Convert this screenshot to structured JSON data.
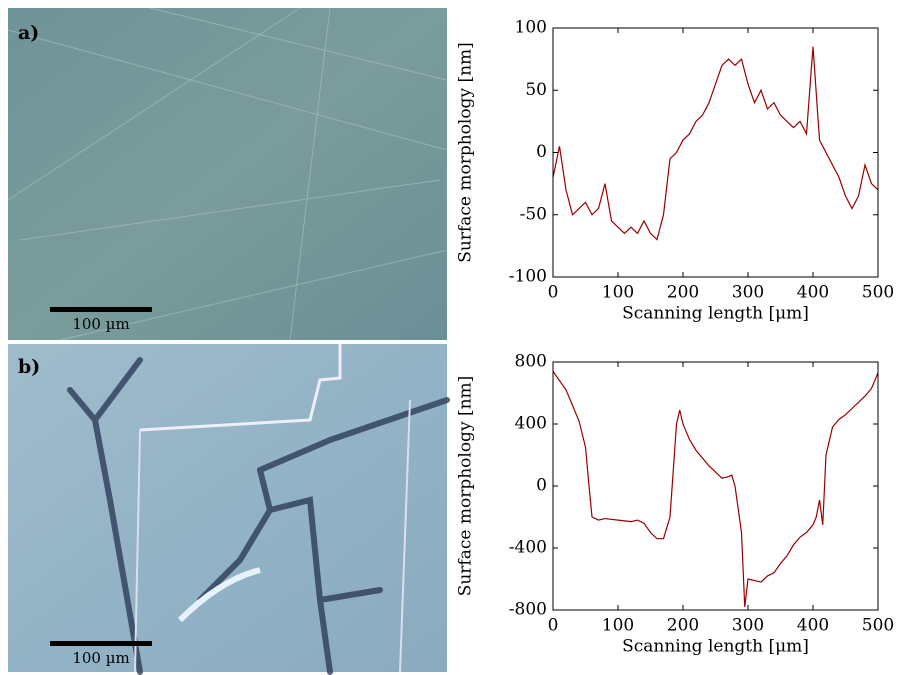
{
  "panels": [
    {
      "label": "a)",
      "scale_bar": "100 µm"
    },
    {
      "label": "b)",
      "scale_bar": "100 µm"
    }
  ],
  "chart_data": [
    {
      "type": "line",
      "color": "#990000",
      "xlabel": "Scanning length [μm]",
      "ylabel": "Surface morphology [nm]",
      "x": [
        0,
        10,
        20,
        30,
        40,
        50,
        60,
        70,
        80,
        90,
        100,
        110,
        120,
        130,
        140,
        150,
        160,
        170,
        180,
        190,
        200,
        210,
        220,
        230,
        240,
        250,
        260,
        270,
        280,
        290,
        300,
        310,
        320,
        330,
        340,
        350,
        360,
        370,
        380,
        390,
        400,
        410,
        420,
        430,
        440,
        450,
        460,
        470,
        480,
        490,
        500
      ],
      "values": [
        -20,
        5,
        -30,
        -50,
        -45,
        -40,
        -50,
        -45,
        -25,
        -55,
        -60,
        -65,
        -60,
        -65,
        -55,
        -65,
        -70,
        -50,
        -5,
        0,
        10,
        15,
        25,
        30,
        40,
        55,
        70,
        75,
        70,
        75,
        55,
        40,
        50,
        35,
        40,
        30,
        25,
        20,
        25,
        15,
        85,
        10,
        0,
        -10,
        -20,
        -35,
        -45,
        -35,
        -10,
        -25,
        -30
      ],
      "xlim": [
        0,
        500
      ],
      "xticks": [
        0,
        100,
        200,
        300,
        400,
        500
      ],
      "ylim": [
        -100,
        100
      ],
      "yticks": [
        -100,
        -50,
        0,
        50,
        100
      ]
    },
    {
      "type": "line",
      "color": "#990000",
      "xlabel": "Scanning length [μm]",
      "ylabel": "Surface morphology [nm]",
      "x": [
        0,
        10,
        20,
        30,
        40,
        50,
        55,
        60,
        70,
        80,
        100,
        120,
        130,
        140,
        150,
        160,
        170,
        180,
        190,
        195,
        200,
        210,
        220,
        230,
        240,
        250,
        260,
        270,
        275,
        280,
        290,
        295,
        300,
        310,
        320,
        330,
        340,
        350,
        360,
        370,
        380,
        390,
        400,
        405,
        410,
        415,
        420,
        430,
        440,
        450,
        460,
        470,
        480,
        490,
        500
      ],
      "values": [
        740,
        680,
        620,
        520,
        420,
        250,
        20,
        -200,
        -220,
        -210,
        -220,
        -230,
        -220,
        -240,
        -300,
        -340,
        -340,
        -200,
        400,
        490,
        400,
        300,
        230,
        180,
        130,
        90,
        50,
        60,
        70,
        0,
        -300,
        -780,
        -600,
        -610,
        -620,
        -580,
        -560,
        -500,
        -450,
        -380,
        -330,
        -300,
        -250,
        -200,
        -90,
        -250,
        200,
        380,
        430,
        460,
        500,
        540,
        580,
        630,
        730
      ],
      "xlim": [
        0,
        500
      ],
      "xticks": [
        0,
        100,
        200,
        300,
        400,
        500
      ],
      "ylim": [
        -800,
        800
      ],
      "yticks": [
        -800,
        -400,
        0,
        400,
        800
      ]
    }
  ]
}
